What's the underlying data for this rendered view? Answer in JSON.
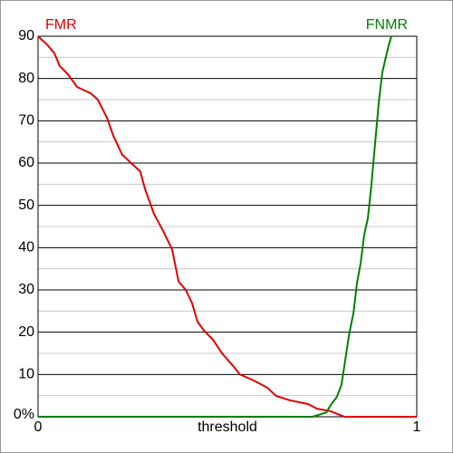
{
  "chart_data": {
    "type": "line",
    "xlabel": "threshold",
    "xlim": [
      0,
      1
    ],
    "xticks": [
      0,
      1
    ],
    "ylim": [
      0,
      90
    ],
    "yticks": [
      {
        "value": 0,
        "label": "0%"
      },
      10,
      20,
      30,
      40,
      50,
      60,
      70,
      80,
      90
    ],
    "minor_yticks": [
      5,
      15,
      25,
      35,
      45,
      55,
      65,
      75,
      85
    ],
    "grid": true,
    "step": true,
    "series": [
      {
        "name": "FMR",
        "color": "#e00000",
        "x": [
          0,
          0.024,
          0.043,
          0.057,
          0.079,
          0.103,
          0.139,
          0.158,
          0.182,
          0.199,
          0.222,
          0.246,
          0.27,
          0.282,
          0.306,
          0.33,
          0.354,
          0.371,
          0.39,
          0.407,
          0.421,
          0.438,
          0.462,
          0.486,
          0.517,
          0.533,
          0.569,
          0.605,
          0.629,
          0.665,
          0.713,
          0.737,
          0.773,
          0.809,
          1
        ],
        "values": [
          90,
          88,
          86,
          83,
          81,
          78,
          76.5,
          75,
          70.7,
          66.4,
          62,
          60,
          58,
          54,
          48,
          44,
          39.6,
          32,
          30,
          26.8,
          22.5,
          20.4,
          18.2,
          15,
          11.8,
          10,
          8.6,
          6.9,
          4.9,
          3.9,
          3,
          1.9,
          1.3,
          0,
          0
        ]
      },
      {
        "name": "FNMR",
        "color": "#008000",
        "x": [
          0,
          0.725,
          0.761,
          0.773,
          0.789,
          0.801,
          0.811,
          0.821,
          0.833,
          0.842,
          0.852,
          0.861,
          0.871,
          0.88,
          0.89,
          0.9,
          0.909,
          0.919,
          0.926,
          0.933
        ],
        "values": [
          0,
          0,
          1,
          2.8,
          4.7,
          7.5,
          13.3,
          19.3,
          24.6,
          31.5,
          36.4,
          42.9,
          47,
          54.6,
          64.7,
          74.6,
          81.4,
          85.3,
          87.9,
          90
        ]
      }
    ]
  }
}
